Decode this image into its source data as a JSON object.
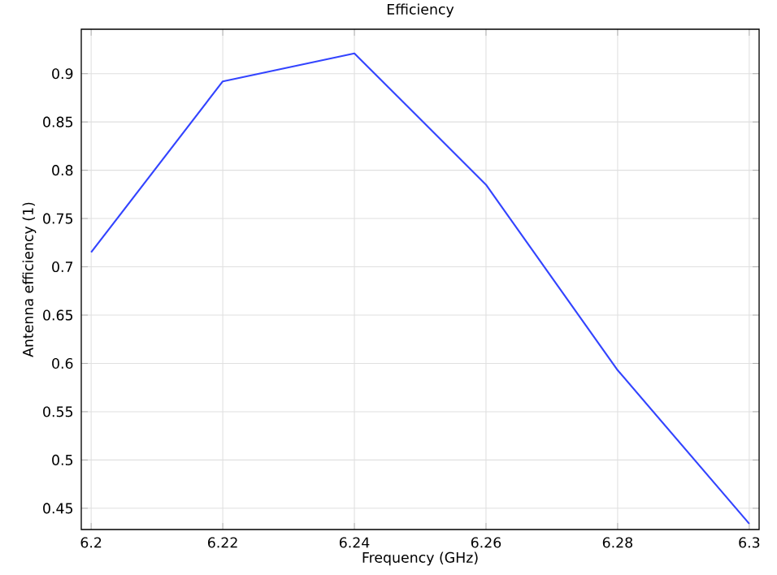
{
  "chart_data": {
    "type": "line",
    "title": "Efficiency",
    "xlabel": "Frequency (GHz)",
    "ylabel": "Antenna efficiency (1)",
    "x": [
      6.2,
      6.22,
      6.24,
      6.26,
      6.28,
      6.3
    ],
    "series": [
      {
        "color": "#3344ff",
        "values": [
          0.715,
          0.892,
          0.921,
          0.785,
          0.593,
          0.434
        ]
      }
    ],
    "xlim": [
      6.1985,
      6.3015
    ],
    "ylim": [
      0.428,
      0.946
    ],
    "xticks": [
      6.2,
      6.22,
      6.24,
      6.26,
      6.28,
      6.3
    ],
    "yticks": [
      0.45,
      0.5,
      0.55,
      0.6,
      0.65,
      0.7,
      0.75,
      0.8,
      0.85,
      0.9
    ],
    "grid": true,
    "marker": "none",
    "line_style": "solid"
  }
}
